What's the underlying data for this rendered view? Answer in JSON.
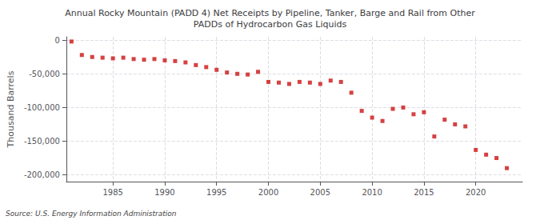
{
  "chart_data": {
    "type": "scatter",
    "title": "Annual Rocky Mountain (PADD 4) Net Receipts by Pipeline, Tanker, Barge and Rail from Other\nPADDs of Hydrocarbon Gas Liquids",
    "ylabel": "Thousand Barrels",
    "source": "Source: U.S. Energy Information Administration",
    "color": "#cc1111",
    "marker": "square",
    "grid": true,
    "x": [
      1981,
      1982,
      1983,
      1984,
      1985,
      1986,
      1987,
      1988,
      1989,
      1990,
      1991,
      1992,
      1993,
      1994,
      1995,
      1996,
      1997,
      1998,
      1999,
      2000,
      2001,
      2002,
      2003,
      2004,
      2005,
      2006,
      2007,
      2008,
      2009,
      2010,
      2011,
      2012,
      2013,
      2014,
      2015,
      2016,
      2017,
      2018,
      2019,
      2020,
      2021,
      2022,
      2023
    ],
    "values": [
      -2000,
      -22000,
      -25000,
      -26000,
      -27000,
      -26000,
      -28000,
      -29000,
      -28000,
      -30000,
      -31000,
      -33000,
      -37000,
      -40000,
      -44000,
      -48000,
      -50000,
      -51000,
      -47000,
      -62000,
      -63000,
      -65000,
      -62000,
      -63000,
      -65000,
      -60000,
      -62000,
      -78000,
      -105000,
      -115000,
      -120000,
      -102000,
      -100000,
      -110000,
      -107000,
      -143000,
      -118000,
      -125000,
      -128000,
      -163000,
      -170000,
      -175000,
      -190000
    ],
    "xlim": [
      1980.5,
      2024.5
    ],
    "xticks": [
      1985,
      1990,
      1995,
      2000,
      2005,
      2010,
      2015,
      2020
    ],
    "ylim": [
      -210000,
      5000
    ],
    "yticks": [
      0,
      {
        "value": -50000,
        "label": "-50,000"
      },
      {
        "value": -100000,
        "label": "-100,000"
      },
      {
        "value": -150000,
        "label": "-150,000"
      },
      {
        "value": -200000,
        "label": "-200,000"
      }
    ]
  }
}
